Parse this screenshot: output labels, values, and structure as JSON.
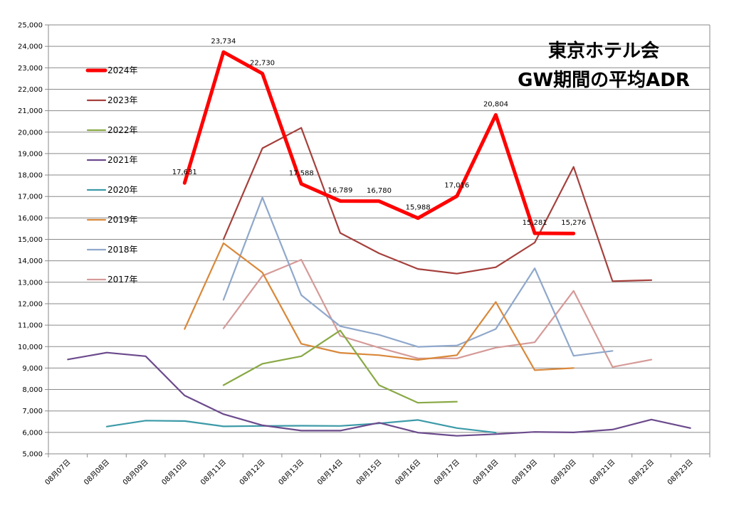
{
  "chart_data": {
    "type": "line",
    "title": [
      "東京ホテル会",
      "GW期間の平均ADR"
    ],
    "categories": [
      "08月07日",
      "08月08日",
      "08月09日",
      "08月10日",
      "08月11日",
      "08月12日",
      "08月13日",
      "08月14日",
      "08月15日",
      "08月16日",
      "08月17日",
      "08月18日",
      "08月19日",
      "08月20日",
      "08月21日",
      "08月22日",
      "08月23日"
    ],
    "ylim": [
      5000,
      25000
    ],
    "ytick_step": 1000,
    "ytick_labels": [
      "5,000",
      "6,000",
      "7,000",
      "8,000",
      "9,000",
      "10,000",
      "11,000",
      "12,000",
      "13,000",
      "14,000",
      "15,000",
      "16,000",
      "17,000",
      "18,000",
      "19,000",
      "20,000",
      "21,000",
      "22,000",
      "23,000",
      "24,000",
      "25,000"
    ],
    "grid": "horizontal",
    "legend": "left",
    "series": [
      {
        "name": "2024年",
        "color": "#ff0000",
        "bold": true,
        "values": [
          null,
          null,
          null,
          17631,
          23734,
          22730,
          17588,
          16789,
          16780,
          15988,
          17016,
          20804,
          15281,
          15276,
          null,
          null,
          null
        ],
        "labels": [
          null,
          null,
          null,
          "17,631",
          "23,734",
          "22,730",
          "17,588",
          "16,789",
          "16,780",
          "15,988",
          "17,016",
          "20,804",
          "15,281",
          "15,276",
          null,
          null,
          null
        ]
      },
      {
        "name": "2023年",
        "color": "#a5403c",
        "values": [
          null,
          null,
          null,
          null,
          15000,
          19250,
          20200,
          15300,
          14350,
          13620,
          13400,
          13700,
          14850,
          18380,
          13050,
          13100,
          null
        ]
      },
      {
        "name": "2022年",
        "color": "#89a945",
        "values": [
          null,
          null,
          null,
          null,
          8200,
          9200,
          9550,
          10750,
          8200,
          7380,
          7430,
          null,
          null,
          null,
          null,
          null,
          null
        ]
      },
      {
        "name": "2021年",
        "color": "#6b4a8c",
        "values": [
          9400,
          9720,
          9550,
          7720,
          6850,
          6330,
          6080,
          6080,
          6450,
          5990,
          5840,
          5920,
          6020,
          6000,
          6130,
          6600,
          6200
        ]
      },
      {
        "name": "2020年",
        "color": "#3c9aa8",
        "values": [
          null,
          6270,
          6550,
          6530,
          6280,
          6300,
          6310,
          6300,
          6420,
          6580,
          6200,
          5990,
          null,
          null,
          null,
          null,
          null
        ]
      },
      {
        "name": "2019年",
        "color": "#d9883a",
        "values": [
          null,
          null,
          null,
          10820,
          14820,
          13450,
          10130,
          9710,
          9600,
          9380,
          9600,
          12080,
          8900,
          9000,
          null,
          null,
          null
        ]
      },
      {
        "name": "2018年",
        "color": "#8fa8cb",
        "values": [
          null,
          null,
          null,
          null,
          12180,
          16950,
          12400,
          10950,
          10550,
          9990,
          10050,
          10820,
          13650,
          9570,
          9800,
          null,
          null
        ]
      },
      {
        "name": "2017年",
        "color": "#d59a98",
        "values": [
          null,
          null,
          null,
          null,
          10850,
          13300,
          14050,
          10500,
          9950,
          9450,
          9450,
          9950,
          10200,
          12600,
          9050,
          9390,
          null
        ]
      }
    ]
  }
}
